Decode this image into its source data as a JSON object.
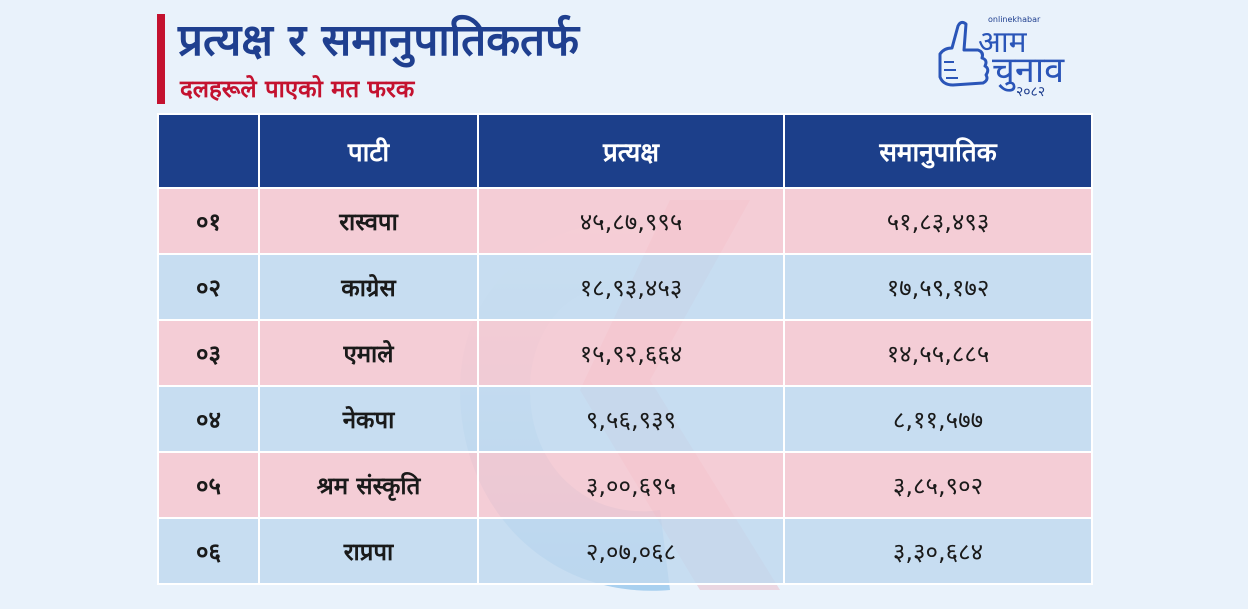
{
  "header": {
    "title": "प्रत्यक्ष र समानुपातिकतर्फ",
    "subtitle": "दलहरूले पाएको मत फरक"
  },
  "logo": {
    "brand": "onlinekhabar",
    "line1": "आम",
    "line2": "चुनाव",
    "year": "२०८२"
  },
  "table": {
    "columns": [
      "",
      "पाटी",
      "प्रत्यक्ष",
      "समानुपातिक"
    ],
    "rows": [
      {
        "num": "०१",
        "party": "रास्वपा",
        "direct": "४५,८७,९९५",
        "proportional": "५१,८३,४९३"
      },
      {
        "num": "०२",
        "party": "काग्रेस",
        "direct": "१८,९३,४५३",
        "proportional": "१७,५९,१७२"
      },
      {
        "num": "०३",
        "party": "एमाले",
        "direct": "१५,९२,६६४",
        "proportional": "१४,५५,८८५"
      },
      {
        "num": "०४",
        "party": "नेकपा",
        "direct": "९,५६,९३९",
        "proportional": "८,११,५७७"
      },
      {
        "num": "०५",
        "party": "श्रम संस्कृति",
        "direct": "३,००,६९५",
        "proportional": "३,८५,९०२"
      },
      {
        "num": "०६",
        "party": "राप्रपा",
        "direct": "२,०७,०६८",
        "proportional": "३,३०,६८४"
      }
    ]
  },
  "colors": {
    "header_bg": "#1c3f8a",
    "accent_red": "#c4122f",
    "title_blue": "#1f3f8f",
    "row_pink": "#f7c4cd",
    "row_blue": "#bfd8ee"
  }
}
